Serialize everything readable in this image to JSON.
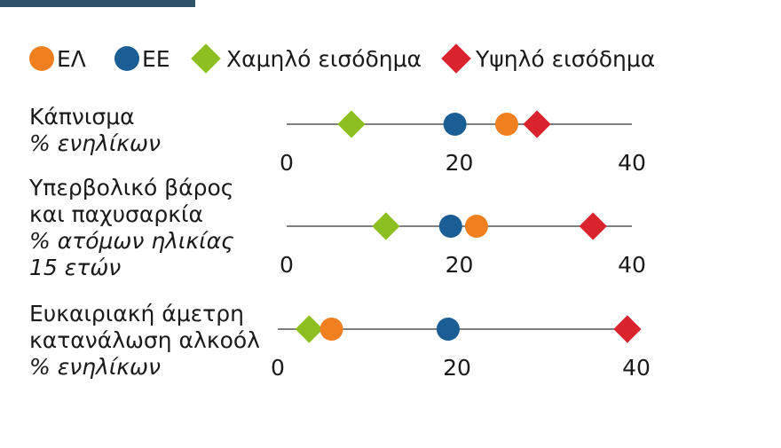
{
  "chart_data": {
    "type": "dot",
    "title": "",
    "xlim": [
      0,
      40
    ],
    "ticks": [
      0,
      20,
      40
    ],
    "legend": [
      {
        "key": "el",
        "label": "ΕΛ",
        "marker": "circle",
        "color": "#f07f1f"
      },
      {
        "key": "ee",
        "label": "ΕΕ",
        "marker": "circle",
        "color": "#1b5e96"
      },
      {
        "key": "low",
        "label": "Χαμηλό εισόδημα",
        "marker": "diamond",
        "color": "#8cbf1f"
      },
      {
        "key": "high",
        "label": "Υψηλό εισόδημα",
        "marker": "diamond",
        "color": "#d9232d"
      }
    ],
    "rows": [
      {
        "label_lines": [
          "Κάπνισμα"
        ],
        "unit_lines": [
          "% ενηλίκων"
        ],
        "values": {
          "low": 7.5,
          "ee": 19.5,
          "el": 25.5,
          "high": 29
        }
      },
      {
        "label_lines": [
          "Υπερβολικό βάρος",
          "και παχυσαρκία"
        ],
        "unit_lines": [
          "% ατόμων ηλικίας",
          "15 ετών"
        ],
        "values": {
          "low": 11.5,
          "ee": 19,
          "el": 22,
          "high": 35.5
        }
      },
      {
        "label_lines": [
          "Ευκαιριακή άμετρη",
          "κατανάλωση αλκοόλ"
        ],
        "unit_lines": [
          "% ενηλίκων"
        ],
        "values": {
          "low": 3.5,
          "el": 6,
          "ee": 19,
          "high": 39
        }
      }
    ]
  },
  "colors": {
    "top_bar": "#2e5366",
    "axis_line": "#555555"
  }
}
